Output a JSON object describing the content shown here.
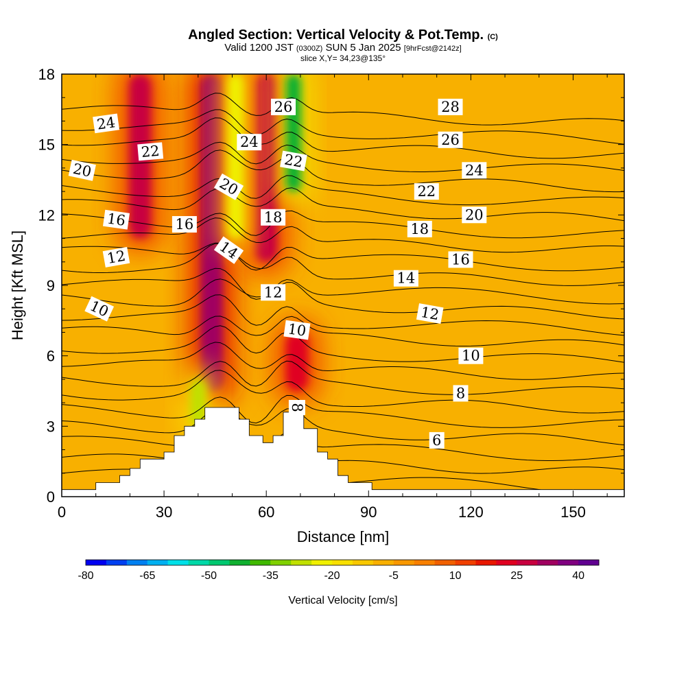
{
  "header": {
    "title": "Angled Section: Vertical Velocity & Pot.Temp.",
    "copyright": "(C)",
    "valid_prefix": "Valid 1200 JST",
    "valid_utc": "(0300Z)",
    "valid_date": "SUN 5 Jan 2025",
    "forecast": "[9hrFcst@2142z]",
    "slice": "slice X,Y= 34,23@135°"
  },
  "chart_data": {
    "type": "heatmap",
    "xlabel": "Distance [nm]",
    "ylabel": "Height [Kft MSL]",
    "xlim": [
      0,
      165
    ],
    "ylim": [
      0,
      18
    ],
    "x_ticks": [
      0,
      30,
      60,
      90,
      120,
      150
    ],
    "y_ticks": [
      0,
      3,
      6,
      9,
      12,
      15,
      18
    ],
    "colorbar": {
      "label": "Vertical Velocity [cm/s]",
      "bounds": [
        -80,
        45
      ],
      "step": 5,
      "tick_values": [
        -80,
        -65,
        -50,
        -35,
        -20,
        -5,
        10,
        25,
        40
      ],
      "colors": [
        "#0000f0",
        "#0040f0",
        "#0080f0",
        "#00b0f0",
        "#00e0e8",
        "#00d8a8",
        "#00c870",
        "#10b030",
        "#40b800",
        "#80d000",
        "#c0e000",
        "#f0f000",
        "#f8e000",
        "#f8c800",
        "#f8b000",
        "#f89800",
        "#f88000",
        "#f06000",
        "#f04000",
        "#e81800",
        "#e00020",
        "#c80040",
        "#a00060",
        "#800080",
        "#600090"
      ]
    },
    "velocity_features": [
      {
        "kind": "updraft",
        "x": 23,
        "z_bottom": 11,
        "z_top": 18,
        "value": 25
      },
      {
        "kind": "updraft",
        "x": 44,
        "z_bottom": 4.5,
        "z_top": 18,
        "value": 30
      },
      {
        "kind": "updraft",
        "x": 60,
        "z_bottom": 10,
        "z_top": 18,
        "value": 25
      },
      {
        "kind": "updraft",
        "x": 69,
        "z_bottom": 4.5,
        "z_top": 7,
        "value": 20
      },
      {
        "kind": "downdraft",
        "x": 40,
        "z_bottom": 3,
        "z_top": 5,
        "value": -30
      },
      {
        "kind": "downdraft",
        "x": 51,
        "z_bottom": 11,
        "z_top": 18,
        "value": -25
      },
      {
        "kind": "downdraft",
        "x": 68,
        "z_bottom": 13,
        "z_top": 18,
        "value": -45
      }
    ],
    "pot_temp_contours": {
      "levels": [
        6,
        8,
        10,
        12,
        14,
        16,
        18,
        20,
        22,
        24,
        26,
        28
      ],
      "labels": [
        {
          "text": "24",
          "x": 13,
          "z": 15.9,
          "rot": -8
        },
        {
          "text": "22",
          "x": 26,
          "z": 14.7,
          "rot": -5
        },
        {
          "text": "20",
          "x": 6,
          "z": 13.9,
          "rot": 12
        },
        {
          "text": "16",
          "x": 16,
          "z": 11.8,
          "rot": 8
        },
        {
          "text": "16",
          "x": 36,
          "z": 11.6,
          "rot": 0
        },
        {
          "text": "12",
          "x": 16,
          "z": 10.2,
          "rot": -10
        },
        {
          "text": "10",
          "x": 11,
          "z": 8.0,
          "rot": 25
        },
        {
          "text": "20",
          "x": 49,
          "z": 13.2,
          "rot": 30
        },
        {
          "text": "24",
          "x": 55,
          "z": 15.1,
          "rot": 0
        },
        {
          "text": "26",
          "x": 65,
          "z": 16.6,
          "rot": 0
        },
        {
          "text": "18",
          "x": 62,
          "z": 11.9,
          "rot": 0
        },
        {
          "text": "14",
          "x": 49,
          "z": 10.5,
          "rot": 35
        },
        {
          "text": "12",
          "x": 62,
          "z": 8.7,
          "rot": 0
        },
        {
          "text": "22",
          "x": 68,
          "z": 14.3,
          "rot": 10
        },
        {
          "text": "10",
          "x": 69,
          "z": 7.1,
          "rot": 8
        },
        {
          "text": "8",
          "x": 69,
          "z": 3.8,
          "rot": 90
        },
        {
          "text": "28",
          "x": 114,
          "z": 16.6,
          "rot": 0
        },
        {
          "text": "26",
          "x": 114,
          "z": 15.2,
          "rot": 0
        },
        {
          "text": "24",
          "x": 121,
          "z": 13.9,
          "rot": 0
        },
        {
          "text": "22",
          "x": 107,
          "z": 13.0,
          "rot": 0
        },
        {
          "text": "20",
          "x": 121,
          "z": 12.0,
          "rot": 0
        },
        {
          "text": "18",
          "x": 105,
          "z": 11.4,
          "rot": 0
        },
        {
          "text": "16",
          "x": 117,
          "z": 10.1,
          "rot": 0
        },
        {
          "text": "14",
          "x": 101,
          "z": 9.3,
          "rot": 0
        },
        {
          "text": "12",
          "x": 108,
          "z": 7.8,
          "rot": 10
        },
        {
          "text": "10",
          "x": 120,
          "z": 6.0,
          "rot": 0
        },
        {
          "text": "8",
          "x": 117,
          "z": 4.4,
          "rot": 0
        },
        {
          "text": "6",
          "x": 110,
          "z": 2.4,
          "rot": 0
        }
      ]
    },
    "terrain_kft": [
      [
        0,
        0.3
      ],
      [
        10,
        0.3
      ],
      [
        10,
        0.6
      ],
      [
        17,
        0.6
      ],
      [
        17,
        0.9
      ],
      [
        20,
        0.9
      ],
      [
        20,
        1.2
      ],
      [
        23,
        1.2
      ],
      [
        23,
        1.6
      ],
      [
        30,
        1.6
      ],
      [
        30,
        1.9
      ],
      [
        33,
        1.9
      ],
      [
        33,
        2.6
      ],
      [
        36,
        2.6
      ],
      [
        36,
        3.0
      ],
      [
        39,
        3.0
      ],
      [
        39,
        3.3
      ],
      [
        42,
        3.3
      ],
      [
        42,
        3.8
      ],
      [
        52,
        3.8
      ],
      [
        52,
        3.3
      ],
      [
        55,
        3.3
      ],
      [
        55,
        2.6
      ],
      [
        59,
        2.6
      ],
      [
        59,
        2.3
      ],
      [
        62,
        2.3
      ],
      [
        62,
        2.6
      ],
      [
        65,
        2.6
      ],
      [
        65,
        3.6
      ],
      [
        71,
        3.6
      ],
      [
        71,
        2.9
      ],
      [
        75,
        2.9
      ],
      [
        75,
        1.9
      ],
      [
        78,
        1.9
      ],
      [
        78,
        1.6
      ],
      [
        81,
        1.6
      ],
      [
        81,
        0.9
      ],
      [
        84,
        0.9
      ],
      [
        84,
        0.6
      ],
      [
        91,
        0.6
      ],
      [
        91,
        0.3
      ],
      [
        165,
        0.3
      ]
    ],
    "colors": {
      "background_field": "#f8b000",
      "terrain": "#ffffff",
      "contour": "#000000"
    }
  }
}
